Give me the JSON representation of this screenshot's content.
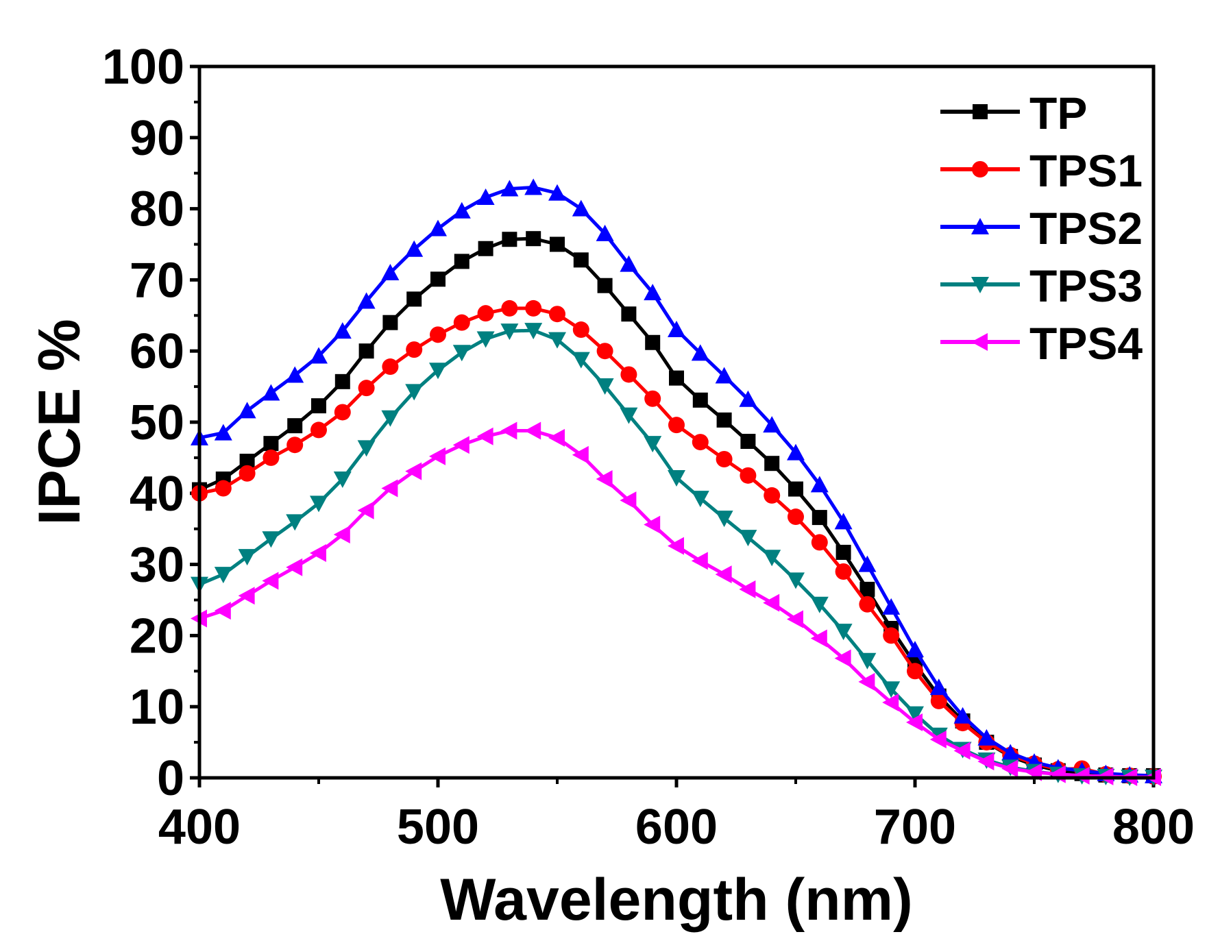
{
  "chart_data": {
    "type": "line",
    "title": "",
    "xlabel": "Wavelength (nm)",
    "ylabel": "IPCE %",
    "xlim": [
      400,
      800
    ],
    "ylim": [
      0,
      100
    ],
    "xticks": [
      400,
      500,
      600,
      700,
      800
    ],
    "yticks": [
      0,
      10,
      20,
      30,
      40,
      50,
      60,
      70,
      80,
      90,
      100
    ],
    "grid": false,
    "legend_position": "top-right",
    "x": [
      400,
      410,
      420,
      430,
      440,
      450,
      460,
      470,
      480,
      490,
      500,
      510,
      520,
      530,
      540,
      550,
      560,
      570,
      580,
      590,
      600,
      610,
      620,
      630,
      640,
      650,
      660,
      670,
      680,
      690,
      700,
      710,
      720,
      730,
      740,
      750,
      760,
      770,
      780,
      790,
      800
    ],
    "series": [
      {
        "name": "TP",
        "color": "#000000",
        "marker": "square",
        "values": [
          40.5,
          42,
          44.5,
          47,
          49.5,
          52.3,
          55.7,
          60,
          64,
          67.3,
          70.1,
          72.6,
          74.4,
          75.7,
          75.8,
          75,
          72.8,
          69.2,
          65.2,
          61.2,
          56.2,
          53.1,
          50.3,
          47.3,
          44.2,
          40.6,
          36.6,
          31.7,
          26.5,
          21,
          16,
          11.5,
          8,
          5,
          3,
          1.8,
          1,
          0.6,
          0.4,
          0.3,
          0.3
        ]
      },
      {
        "name": "TPS1",
        "color": "#ff0000",
        "marker": "circle",
        "values": [
          40,
          40.7,
          42.8,
          45,
          46.8,
          48.9,
          51.4,
          54.8,
          57.8,
          60.2,
          62.3,
          64,
          65.3,
          66,
          66,
          65.2,
          63,
          60,
          56.7,
          53.3,
          49.6,
          47.2,
          44.8,
          42.5,
          39.7,
          36.7,
          33.1,
          29,
          24.4,
          20,
          15,
          10.8,
          7.7,
          5,
          3.2,
          2,
          1.2,
          1.3,
          0.5,
          0.3,
          0.2
        ]
      },
      {
        "name": "TPS2",
        "color": "#0000ff",
        "marker": "triangle-up",
        "values": [
          47.8,
          48.5,
          51.6,
          54.1,
          56.6,
          59.3,
          62.8,
          67,
          71,
          74.3,
          77.2,
          79.7,
          81.6,
          82.8,
          83,
          82.2,
          80,
          76.5,
          72.2,
          68.2,
          63,
          59.7,
          56.5,
          53.2,
          49.6,
          45.7,
          41.2,
          36,
          30,
          24,
          18,
          12.7,
          8.7,
          5.6,
          3.5,
          2.2,
          1.4,
          1,
          0.6,
          0.4,
          0.3
        ]
      },
      {
        "name": "TPS3",
        "color": "#008080",
        "marker": "triangle-down",
        "values": [
          27.2,
          28.6,
          31.1,
          33.6,
          36,
          38.6,
          42,
          46.4,
          50.6,
          54.3,
          57.3,
          59.8,
          61.7,
          62.8,
          62.9,
          61.6,
          58.8,
          55.1,
          51,
          47,
          42.2,
          39.3,
          36.5,
          33.8,
          31,
          27.8,
          24.4,
          20.6,
          16.5,
          12.5,
          9,
          6,
          4,
          2.5,
          1.5,
          0.9,
          0.5,
          0.3,
          0.2,
          0.1,
          0.1
        ]
      },
      {
        "name": "TPS4",
        "color": "#ff00ff",
        "marker": "triangle-left",
        "values": [
          22.4,
          23.5,
          25.6,
          27.7,
          29.6,
          31.6,
          34.2,
          37.6,
          40.7,
          43.1,
          45.2,
          46.8,
          48,
          48.8,
          48.8,
          47.8,
          45.4,
          42,
          39,
          35.6,
          32.6,
          30.5,
          28.6,
          26.5,
          24.6,
          22.3,
          19.6,
          16.8,
          13.5,
          10.6,
          7.8,
          5.4,
          3.8,
          2.3,
          1.3,
          0.8,
          0.5,
          0.3,
          0.2,
          0.1,
          0.1
        ]
      }
    ]
  }
}
